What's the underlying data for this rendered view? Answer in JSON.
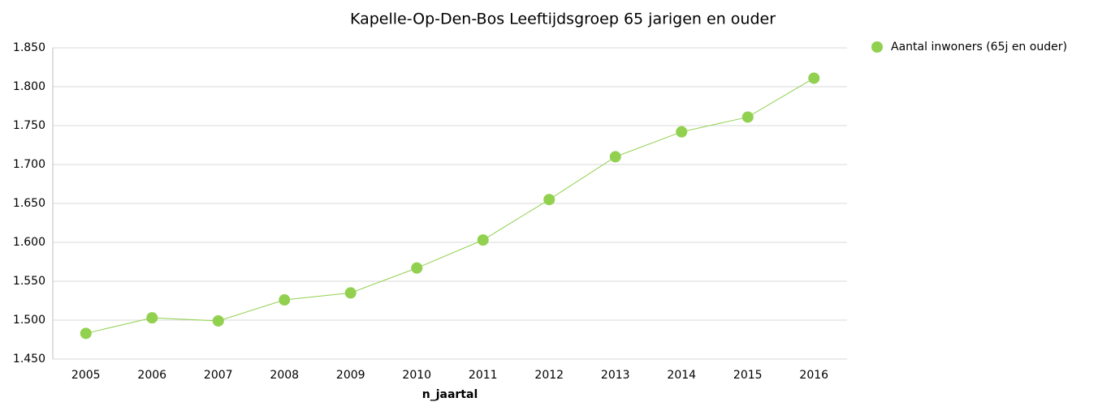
{
  "chart_data": {
    "type": "line",
    "title": "Kapelle-Op-Den-Bos  Leeftijdsgroep 65 jarigen en ouder",
    "x_label": "n_jaartal",
    "categories": [
      "2005",
      "2006",
      "2007",
      "2008",
      "2009",
      "2010",
      "2011",
      "2012",
      "2013",
      "2014",
      "2015",
      "2016"
    ],
    "series": [
      {
        "name": "Aantal inwoners (65j en ouder)",
        "color": "#92d050",
        "values": [
          1483,
          1503,
          1499,
          1526,
          1535,
          1567,
          1603,
          1655,
          1710,
          1742,
          1761,
          1811
        ]
      }
    ],
    "ylim": [
      1450,
      1850
    ],
    "yticks": [
      {
        "value": 1450,
        "label": "1.450"
      },
      {
        "value": 1500,
        "label": "1.500"
      },
      {
        "value": 1550,
        "label": "1.550"
      },
      {
        "value": 1600,
        "label": "1.600"
      },
      {
        "value": 1650,
        "label": "1.650"
      },
      {
        "value": 1700,
        "label": "1.700"
      },
      {
        "value": 1750,
        "label": "1.750"
      },
      {
        "value": 1800,
        "label": "1.800"
      },
      {
        "value": 1850,
        "label": "1.850"
      }
    ],
    "grid": true,
    "legend": "top-right"
  }
}
